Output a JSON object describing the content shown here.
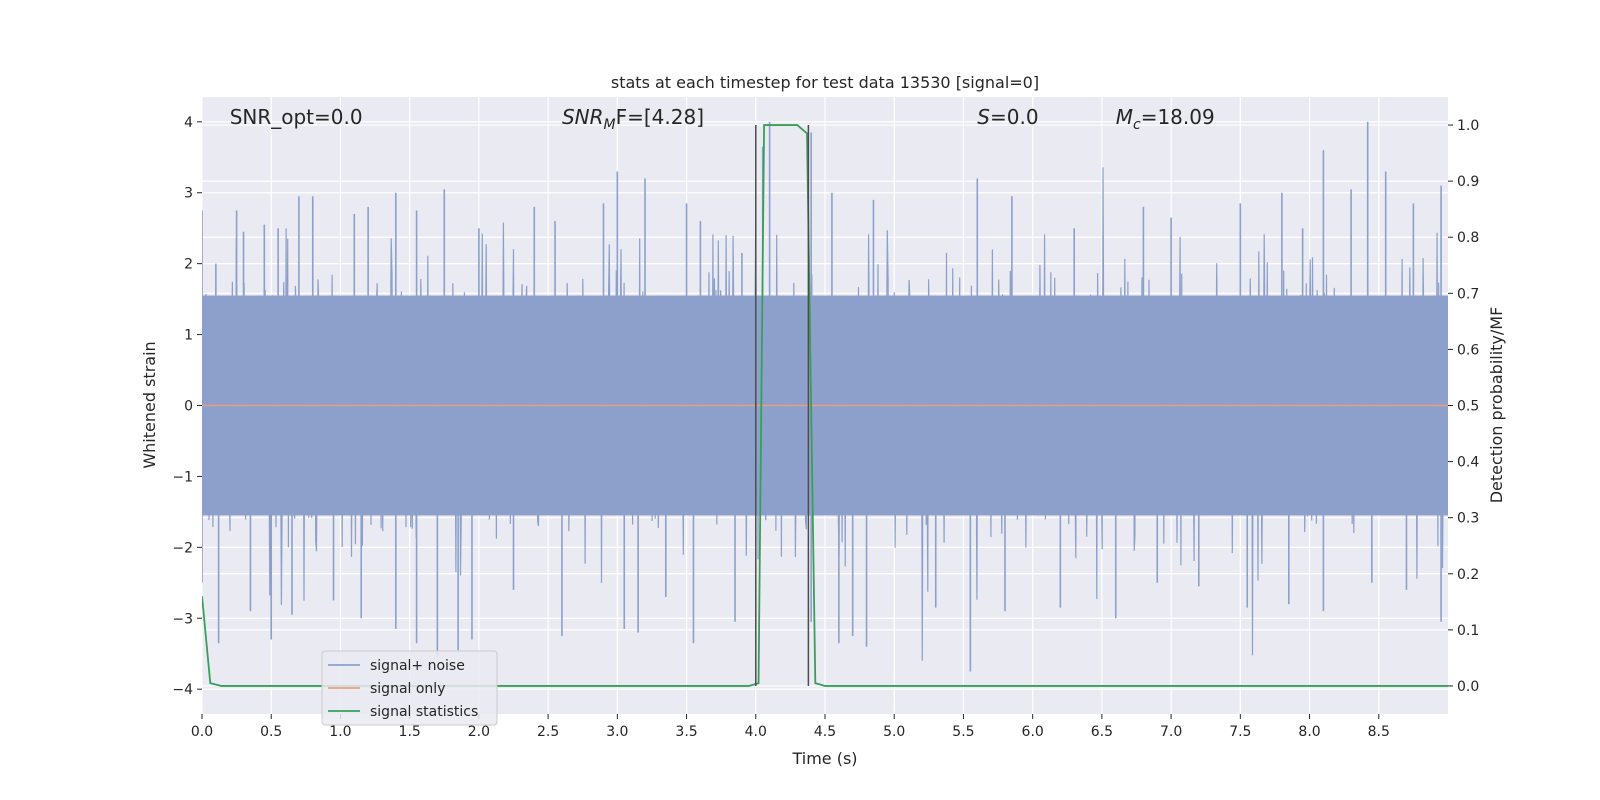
{
  "chart_data": {
    "type": "line",
    "title": "stats at each timestep for test data 13530 [signal=0]",
    "xlabel": "Time (s)",
    "ylabel": "Whitened strain",
    "y2label": "Detection probability/MF",
    "xlim": [
      0.0,
      9.0
    ],
    "ylim": [
      -4.35,
      4.35
    ],
    "y2lim": [
      -0.05,
      1.05
    ],
    "x_ticks": [
      0.0,
      0.5,
      1.0,
      1.5,
      2.0,
      2.5,
      3.0,
      3.5,
      4.0,
      4.5,
      5.0,
      5.5,
      6.0,
      6.5,
      7.0,
      7.5,
      8.0,
      8.5
    ],
    "x_tick_labels": [
      "0.0",
      "0.5",
      "1.0",
      "1.5",
      "2.0",
      "2.5",
      "3.0",
      "3.5",
      "4.0",
      "4.5",
      "5.0",
      "5.5",
      "6.0",
      "6.5",
      "7.0",
      "7.5",
      "8.0",
      "8.5"
    ],
    "y_ticks": [
      4,
      3,
      2,
      1,
      0,
      -1,
      -2,
      -3,
      -4
    ],
    "y_tick_labels": [
      "4",
      "3",
      "2",
      "1",
      "0",
      "−1",
      "−2",
      "−3",
      "−4"
    ],
    "y2_ticks": [
      1.0,
      0.9,
      0.8,
      0.7,
      0.6,
      0.5,
      0.4,
      0.3,
      0.2,
      0.1,
      0.0
    ],
    "y2_tick_labels": [
      "1.0",
      "0.9",
      "0.8",
      "0.7",
      "0.6",
      "0.5",
      "0.4",
      "0.3",
      "0.2",
      "0.1",
      "0.0"
    ],
    "grid": true,
    "legend_position": "bottom-left",
    "annotations": [
      {
        "pre": "SNR_opt=0.0",
        "sub": "",
        "post": "",
        "x": 0.2,
        "italic": false
      },
      {
        "pre": "SNR",
        "sub": "M",
        "post": "F=[4.28]",
        "x": 2.6,
        "italic": true
      },
      {
        "pre": "S",
        "sub": "",
        "post": "=0.0",
        "x": 5.6,
        "italic": true
      },
      {
        "pre": "M",
        "sub": "c",
        "post": "=18.09",
        "x": 6.6,
        "italic": true
      }
    ],
    "vlines": [
      4.0,
      4.38
    ],
    "colors": {
      "noise": "#8da0cb",
      "signal": "#e8a07a",
      "stats": "#3a9e58",
      "vline": "#4d4d4d",
      "background": "#eaeaf2",
      "grid": "#ffffff"
    },
    "series": [
      {
        "name": "signal+ noise",
        "axis": "left",
        "style": "noise-band",
        "t_end": 9.0,
        "band_lower": -1.55,
        "band_upper": 1.55,
        "peak_positive": [
          [
            0.0,
            2.75
          ],
          [
            0.1,
            2.0
          ],
          [
            0.25,
            2.75
          ],
          [
            0.3,
            2.45
          ],
          [
            0.45,
            2.55
          ],
          [
            0.55,
            2.5
          ],
          [
            0.7,
            2.95
          ],
          [
            0.8,
            2.95
          ],
          [
            1.1,
            2.7
          ],
          [
            1.2,
            2.8
          ],
          [
            1.4,
            3.0
          ],
          [
            1.55,
            2.75
          ],
          [
            1.75,
            3.05
          ],
          [
            2.0,
            2.5
          ],
          [
            2.4,
            2.8
          ],
          [
            2.55,
            2.6
          ],
          [
            2.9,
            2.85
          ],
          [
            3.0,
            3.3
          ],
          [
            3.2,
            3.2
          ],
          [
            3.5,
            2.85
          ],
          [
            3.6,
            2.6
          ],
          [
            3.9,
            2.15
          ],
          [
            4.05,
            3.65
          ],
          [
            4.1,
            4.0
          ],
          [
            4.4,
            3.85
          ],
          [
            4.55,
            3.0
          ],
          [
            4.85,
            2.9
          ],
          [
            5.6,
            3.2
          ],
          [
            5.85,
            2.95
          ],
          [
            6.3,
            2.5
          ],
          [
            6.8,
            2.8
          ],
          [
            7.0,
            2.65
          ],
          [
            7.5,
            2.85
          ],
          [
            7.8,
            3.0
          ],
          [
            7.95,
            2.5
          ],
          [
            8.1,
            3.6
          ],
          [
            8.3,
            3.05
          ],
          [
            8.42,
            4.0
          ],
          [
            8.55,
            3.3
          ],
          [
            8.75,
            2.85
          ],
          [
            8.95,
            3.1
          ]
        ],
        "peak_negative": [
          [
            0.0,
            -2.5
          ],
          [
            0.12,
            -3.35
          ],
          [
            0.35,
            -2.9
          ],
          [
            0.5,
            -3.3
          ],
          [
            0.65,
            -2.95
          ],
          [
            0.95,
            -2.75
          ],
          [
            1.15,
            -3.0
          ],
          [
            1.4,
            -3.15
          ],
          [
            1.55,
            -3.35
          ],
          [
            1.7,
            -3.55
          ],
          [
            1.85,
            -3.45
          ],
          [
            1.95,
            -3.3
          ],
          [
            2.25,
            -2.6
          ],
          [
            2.6,
            -3.25
          ],
          [
            3.05,
            -3.15
          ],
          [
            3.15,
            -3.2
          ],
          [
            3.35,
            -2.7
          ],
          [
            3.55,
            -3.35
          ],
          [
            3.85,
            -3.05
          ],
          [
            4.4,
            -3.05
          ],
          [
            4.6,
            -3.35
          ],
          [
            4.7,
            -3.25
          ],
          [
            4.8,
            -3.4
          ],
          [
            5.3,
            -2.85
          ],
          [
            5.55,
            -3.75
          ],
          [
            5.8,
            -2.9
          ],
          [
            6.2,
            -2.85
          ],
          [
            6.6,
            -3.0
          ],
          [
            6.9,
            -2.5
          ],
          [
            7.2,
            -2.55
          ],
          [
            7.55,
            -2.85
          ],
          [
            7.85,
            -2.8
          ],
          [
            8.1,
            -2.9
          ],
          [
            8.45,
            -2.5
          ],
          [
            8.7,
            -2.6
          ],
          [
            8.95,
            -3.05
          ]
        ]
      },
      {
        "name": "signal only",
        "axis": "left",
        "style": "line",
        "x": [
          0.0,
          9.0
        ],
        "y": [
          0.0,
          0.0
        ]
      },
      {
        "name": "signal statistics",
        "axis": "right",
        "style": "line",
        "x": [
          0.0,
          0.06,
          0.14,
          3.95,
          4.02,
          4.06,
          4.3,
          4.37,
          4.43,
          4.5,
          9.0
        ],
        "y": [
          0.16,
          0.005,
          0.0,
          0.0,
          0.005,
          1.0,
          1.0,
          0.985,
          0.005,
          0.0,
          0.0
        ]
      }
    ]
  }
}
